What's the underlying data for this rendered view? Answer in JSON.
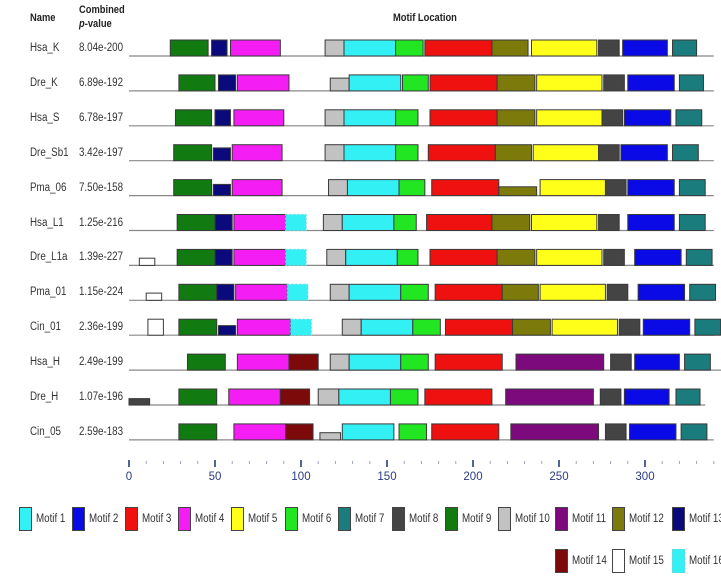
{
  "chart_data": {
    "type": "motif-map",
    "title": "Motif Location",
    "headers": {
      "name": "Name",
      "pvalue_line1": "Combined",
      "pvalue_italic": "p",
      "pvalue_rest": "-value"
    },
    "xlim": [
      0,
      340
    ],
    "xticks_major": [
      0,
      50,
      100,
      150,
      200,
      250,
      300
    ],
    "xtick_minor_step": 10,
    "motifs": [
      {
        "id": 1,
        "label": "Motif 1",
        "color": "#33f0f5",
        "border": "solid"
      },
      {
        "id": 2,
        "label": "Motif 2",
        "color": "#0a0ae6",
        "border": "solid"
      },
      {
        "id": 3,
        "label": "Motif 3",
        "color": "#ef1010",
        "border": "solid"
      },
      {
        "id": 4,
        "label": "Motif 4",
        "color": "#f41ef4",
        "border": "solid"
      },
      {
        "id": 5,
        "label": "Motif 5",
        "color": "#ffff1a",
        "border": "solid"
      },
      {
        "id": 6,
        "label": "Motif 6",
        "color": "#21e621",
        "border": "solid"
      },
      {
        "id": 7,
        "label": "Motif 7",
        "color": "#1a7c7c",
        "border": "solid"
      },
      {
        "id": 8,
        "label": "Motif 8",
        "color": "#444444",
        "border": "solid"
      },
      {
        "id": 9,
        "label": "Motif 9",
        "color": "#117a11",
        "border": "solid"
      },
      {
        "id": 10,
        "label": "Motif 10",
        "color": "#c2c2c2",
        "border": "solid"
      },
      {
        "id": 11,
        "label": "Motif 11",
        "color": "#7c0a7c",
        "border": "solid"
      },
      {
        "id": 12,
        "label": "Motif 12",
        "color": "#7c7a0a",
        "border": "solid"
      },
      {
        "id": 13,
        "label": "Motif 13",
        "color": "#0a0a7c",
        "border": "solid"
      },
      {
        "id": 14,
        "label": "Motif 14",
        "color": "#7c0a0a",
        "border": "solid"
      },
      {
        "id": 15,
        "label": "Motif 15",
        "color": "#ffffff",
        "border": "solid"
      },
      {
        "id": 16,
        "label": "Motif 16",
        "color": "#33f0f5",
        "border": "dashed"
      }
    ],
    "sequences": [
      {
        "name": "Hsa_K",
        "pvalue": "8.04e-200",
        "length": 340,
        "sites": [
          {
            "m": 9,
            "s": 24,
            "e": 46
          },
          {
            "m": 13,
            "s": 48,
            "e": 57
          },
          {
            "m": 4,
            "s": 59,
            "e": 88
          },
          {
            "m": 10,
            "s": 114,
            "e": 125
          },
          {
            "m": 1,
            "s": 125,
            "e": 155
          },
          {
            "m": 6,
            "s": 155,
            "e": 171
          },
          {
            "m": 3,
            "s": 172,
            "e": 211
          },
          {
            "m": 12,
            "s": 211,
            "e": 232
          },
          {
            "m": 5,
            "s": 234,
            "e": 272
          },
          {
            "m": 8,
            "s": 273,
            "e": 285
          },
          {
            "m": 2,
            "s": 287,
            "e": 313
          },
          {
            "m": 7,
            "s": 316,
            "e": 330
          }
        ]
      },
      {
        "name": "Dre_K",
        "pvalue": "6.89e-192",
        "length": 340,
        "sites": [
          {
            "m": 9,
            "s": 29,
            "e": 50
          },
          {
            "m": 13,
            "s": 52,
            "e": 62
          },
          {
            "m": 4,
            "s": 63,
            "e": 93
          },
          {
            "m": 10,
            "s": 117,
            "e": 128,
            "h": 0.8
          },
          {
            "m": 1,
            "s": 128,
            "e": 158
          },
          {
            "m": 6,
            "s": 159,
            "e": 174
          },
          {
            "m": 3,
            "s": 175,
            "e": 214
          },
          {
            "m": 12,
            "s": 214,
            "e": 236
          },
          {
            "m": 5,
            "s": 237,
            "e": 275
          },
          {
            "m": 8,
            "s": 276,
            "e": 288
          },
          {
            "m": 2,
            "s": 290,
            "e": 317
          },
          {
            "m": 7,
            "s": 320,
            "e": 334
          }
        ]
      },
      {
        "name": "Hsa_S",
        "pvalue": "6.78e-197",
        "length": 340,
        "sites": [
          {
            "m": 9,
            "s": 27,
            "e": 48
          },
          {
            "m": 13,
            "s": 50,
            "e": 59
          },
          {
            "m": 4,
            "s": 61,
            "e": 90
          },
          {
            "m": 10,
            "s": 114,
            "e": 125
          },
          {
            "m": 1,
            "s": 125,
            "e": 155
          },
          {
            "m": 6,
            "s": 155,
            "e": 168
          },
          {
            "m": 3,
            "s": 175,
            "e": 214
          },
          {
            "m": 12,
            "s": 214,
            "e": 236
          },
          {
            "m": 5,
            "s": 237,
            "e": 275
          },
          {
            "m": 8,
            "s": 275,
            "e": 287
          },
          {
            "m": 2,
            "s": 288,
            "e": 315
          },
          {
            "m": 7,
            "s": 318,
            "e": 333
          }
        ]
      },
      {
        "name": "Dre_Sb1",
        "pvalue": "3.42e-197",
        "length": 340,
        "sites": [
          {
            "m": 9,
            "s": 26,
            "e": 48
          },
          {
            "m": 13,
            "s": 49,
            "e": 59,
            "h": 0.8
          },
          {
            "m": 4,
            "s": 60,
            "e": 89
          },
          {
            "m": 10,
            "s": 114,
            "e": 125
          },
          {
            "m": 1,
            "s": 125,
            "e": 155
          },
          {
            "m": 6,
            "s": 155,
            "e": 168
          },
          {
            "m": 3,
            "s": 174,
            "e": 213
          },
          {
            "m": 12,
            "s": 213,
            "e": 234
          },
          {
            "m": 5,
            "s": 235,
            "e": 273
          },
          {
            "m": 8,
            "s": 273,
            "e": 285
          },
          {
            "m": 2,
            "s": 286,
            "e": 313
          },
          {
            "m": 7,
            "s": 316,
            "e": 331
          }
        ]
      },
      {
        "name": "Pma_06",
        "pvalue": "7.50e-158",
        "length": 340,
        "sites": [
          {
            "m": 9,
            "s": 26,
            "e": 48
          },
          {
            "m": 13,
            "s": 49,
            "e": 59,
            "h": 0.7
          },
          {
            "m": 4,
            "s": 60,
            "e": 89
          },
          {
            "m": 10,
            "s": 116,
            "e": 127
          },
          {
            "m": 1,
            "s": 127,
            "e": 157
          },
          {
            "m": 6,
            "s": 157,
            "e": 172
          },
          {
            "m": 3,
            "s": 176,
            "e": 215
          },
          {
            "m": 12,
            "s": 215,
            "e": 237,
            "h": 0.55
          },
          {
            "m": 5,
            "s": 239,
            "e": 277
          },
          {
            "m": 8,
            "s": 277,
            "e": 289
          },
          {
            "m": 2,
            "s": 290,
            "e": 317
          },
          {
            "m": 7,
            "s": 320,
            "e": 335
          }
        ]
      },
      {
        "name": "Hsa_L1",
        "pvalue": "1.25e-216",
        "length": 340,
        "sites": [
          {
            "m": 9,
            "s": 28,
            "e": 50
          },
          {
            "m": 13,
            "s": 50,
            "e": 60
          },
          {
            "m": 4,
            "s": 61,
            "e": 91
          },
          {
            "m": 16,
            "s": 91,
            "e": 103
          },
          {
            "m": 10,
            "s": 113,
            "e": 124
          },
          {
            "m": 1,
            "s": 124,
            "e": 154
          },
          {
            "m": 6,
            "s": 154,
            "e": 167
          },
          {
            "m": 3,
            "s": 173,
            "e": 211
          },
          {
            "m": 12,
            "s": 211,
            "e": 233
          },
          {
            "m": 5,
            "s": 234,
            "e": 272
          },
          {
            "m": 8,
            "s": 273,
            "e": 285
          },
          {
            "m": 2,
            "s": 290,
            "e": 317
          },
          {
            "m": 7,
            "s": 320,
            "e": 335
          }
        ]
      },
      {
        "name": "Dre_L1a",
        "pvalue": "1.39e-227",
        "length": 340,
        "sites": [
          {
            "m": 15,
            "s": 6,
            "e": 15,
            "h": 0.45
          },
          {
            "m": 9,
            "s": 28,
            "e": 50
          },
          {
            "m": 13,
            "s": 50,
            "e": 60
          },
          {
            "m": 4,
            "s": 61,
            "e": 91
          },
          {
            "m": 16,
            "s": 91,
            "e": 103
          },
          {
            "m": 10,
            "s": 115,
            "e": 126
          },
          {
            "m": 1,
            "s": 126,
            "e": 156
          },
          {
            "m": 6,
            "s": 156,
            "e": 168
          },
          {
            "m": 3,
            "s": 175,
            "e": 214
          },
          {
            "m": 12,
            "s": 214,
            "e": 236
          },
          {
            "m": 5,
            "s": 237,
            "e": 275
          },
          {
            "m": 8,
            "s": 276,
            "e": 288
          },
          {
            "m": 2,
            "s": 294,
            "e": 321
          },
          {
            "m": 7,
            "s": 324,
            "e": 339
          }
        ]
      },
      {
        "name": "Pma_01",
        "pvalue": "1.15e-224",
        "length": 340,
        "sites": [
          {
            "m": 15,
            "s": 10,
            "e": 19,
            "h": 0.45
          },
          {
            "m": 9,
            "s": 29,
            "e": 51
          },
          {
            "m": 13,
            "s": 51,
            "e": 61
          },
          {
            "m": 4,
            "s": 62,
            "e": 92
          },
          {
            "m": 16,
            "s": 92,
            "e": 104
          },
          {
            "m": 10,
            "s": 117,
            "e": 128
          },
          {
            "m": 1,
            "s": 128,
            "e": 158
          },
          {
            "m": 6,
            "s": 158,
            "e": 174
          },
          {
            "m": 3,
            "s": 178,
            "e": 217
          },
          {
            "m": 12,
            "s": 217,
            "e": 238
          },
          {
            "m": 5,
            "s": 239,
            "e": 277
          },
          {
            "m": 8,
            "s": 278,
            "e": 290
          },
          {
            "m": 2,
            "s": 296,
            "e": 323
          },
          {
            "m": 7,
            "s": 326,
            "e": 341
          }
        ]
      },
      {
        "name": "Cin_01",
        "pvalue": "2.36e-199",
        "length": 340,
        "sites": [
          {
            "m": 15,
            "s": 11,
            "e": 20
          },
          {
            "m": 9,
            "s": 29,
            "e": 51
          },
          {
            "m": 13,
            "s": 52,
            "e": 62,
            "h": 0.6
          },
          {
            "m": 4,
            "s": 63,
            "e": 94
          },
          {
            "m": 16,
            "s": 94,
            "e": 106
          },
          {
            "m": 10,
            "s": 124,
            "e": 135
          },
          {
            "m": 1,
            "s": 135,
            "e": 165
          },
          {
            "m": 6,
            "s": 165,
            "e": 181
          },
          {
            "m": 3,
            "s": 184,
            "e": 223
          },
          {
            "m": 12,
            "s": 223,
            "e": 245
          },
          {
            "m": 5,
            "s": 246,
            "e": 284
          },
          {
            "m": 8,
            "s": 285,
            "e": 297
          },
          {
            "m": 2,
            "s": 299,
            "e": 326
          },
          {
            "m": 7,
            "s": 329,
            "e": 344
          }
        ]
      },
      {
        "name": "Hsa_H",
        "pvalue": "2.49e-199",
        "length": 345,
        "sites": [
          {
            "m": 9,
            "s": 34,
            "e": 56
          },
          {
            "m": 4,
            "s": 63,
            "e": 93
          },
          {
            "m": 14,
            "s": 93,
            "e": 110
          },
          {
            "m": 10,
            "s": 117,
            "e": 128
          },
          {
            "m": 1,
            "s": 128,
            "e": 158
          },
          {
            "m": 6,
            "s": 158,
            "e": 174
          },
          {
            "m": 3,
            "s": 178,
            "e": 217
          },
          {
            "m": 11,
            "s": 225,
            "e": 276
          },
          {
            "m": 8,
            "s": 280,
            "e": 292
          },
          {
            "m": 2,
            "s": 294,
            "e": 320
          },
          {
            "m": 7,
            "s": 323,
            "e": 338
          }
        ]
      },
      {
        "name": "Dre_H",
        "pvalue": "1.07e-196",
        "length": 335,
        "sites": [
          {
            "m": 8,
            "s": 0,
            "e": 12,
            "h": 0.4
          },
          {
            "m": 9,
            "s": 29,
            "e": 51
          },
          {
            "m": 4,
            "s": 58,
            "e": 88
          },
          {
            "m": 14,
            "s": 88,
            "e": 105
          },
          {
            "m": 10,
            "s": 110,
            "e": 122
          },
          {
            "m": 1,
            "s": 122,
            "e": 152
          },
          {
            "m": 6,
            "s": 152,
            "e": 168
          },
          {
            "m": 3,
            "s": 172,
            "e": 211
          },
          {
            "m": 11,
            "s": 219,
            "e": 270
          },
          {
            "m": 8,
            "s": 274,
            "e": 286
          },
          {
            "m": 2,
            "s": 288,
            "e": 314
          },
          {
            "m": 7,
            "s": 318,
            "e": 332
          }
        ]
      },
      {
        "name": "Cin_05",
        "pvalue": "2.59e-183",
        "length": 340,
        "sites": [
          {
            "m": 9,
            "s": 29,
            "e": 51
          },
          {
            "m": 4,
            "s": 61,
            "e": 91
          },
          {
            "m": 14,
            "s": 91,
            "e": 107
          },
          {
            "m": 10,
            "s": 111,
            "e": 123,
            "h": 0.45
          },
          {
            "m": 1,
            "s": 124,
            "e": 154
          },
          {
            "m": 6,
            "s": 157,
            "e": 173
          },
          {
            "m": 3,
            "s": 176,
            "e": 215
          },
          {
            "m": 11,
            "s": 222,
            "e": 273
          },
          {
            "m": 8,
            "s": 277,
            "e": 289
          },
          {
            "m": 2,
            "s": 291,
            "e": 318
          },
          {
            "m": 7,
            "s": 321,
            "e": 336
          }
        ]
      }
    ]
  }
}
